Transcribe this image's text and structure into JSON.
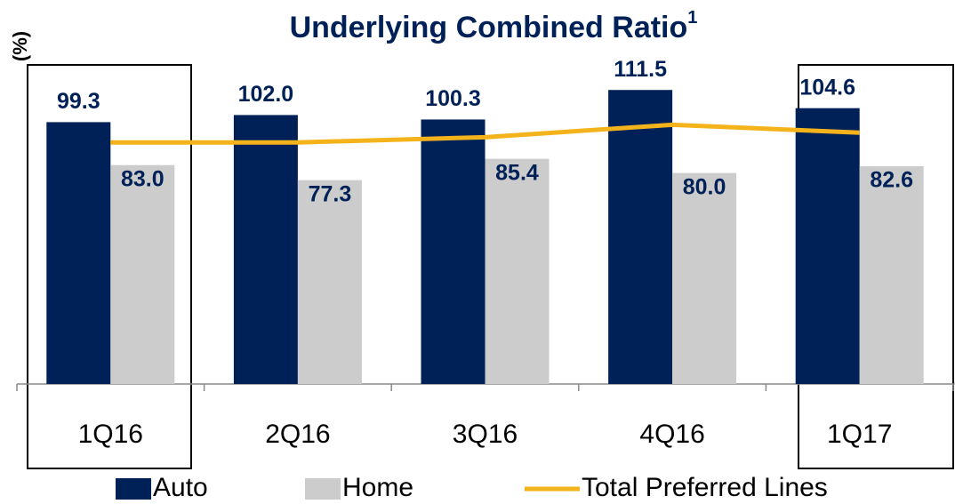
{
  "chart_data": {
    "type": "bar",
    "title": "Underlying Combined Ratio",
    "title_note": "1",
    "ylabel": "(%)",
    "categories": [
      "1Q16",
      "2Q16",
      "3Q16",
      "4Q16",
      "1Q17"
    ],
    "series": [
      {
        "name": "Auto",
        "color": "#002157",
        "type": "bar",
        "values": [
          99.3,
          102.0,
          100.3,
          111.5,
          104.6
        ],
        "value_labels": [
          "99.3",
          "102.0",
          "100.3",
          "111.5",
          "104.6"
        ]
      },
      {
        "name": "Home",
        "color": "#cccccc",
        "type": "bar",
        "values": [
          83.0,
          77.3,
          85.4,
          80.0,
          82.6
        ],
        "value_labels": [
          "83.0",
          "77.3",
          "85.4",
          "80.0",
          "82.6"
        ]
      },
      {
        "name": "Total Preferred Lines",
        "color": "#f5b31b",
        "type": "line",
        "values": [
          91.6,
          91.6,
          93.6,
          98.3,
          95.3
        ]
      }
    ],
    "ylim": [
      0,
      120
    ]
  }
}
